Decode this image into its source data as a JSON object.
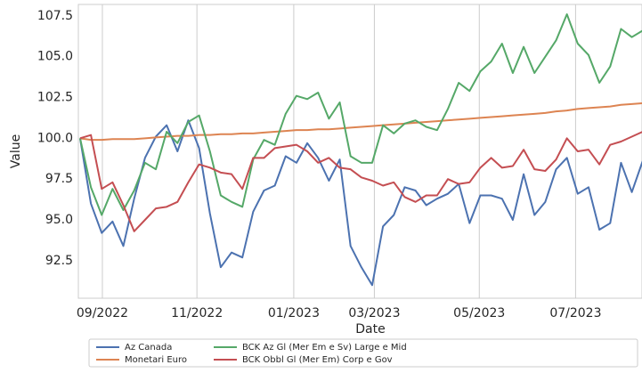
{
  "chart_data": {
    "type": "line",
    "x_label": "Date",
    "y_label": "Value",
    "x": [
      0,
      1,
      2,
      3,
      4,
      5,
      6,
      7,
      8,
      9,
      10,
      11,
      12,
      13,
      14,
      15,
      16,
      17,
      18,
      19,
      20,
      21,
      22,
      23,
      24,
      25,
      26,
      27,
      28,
      29,
      30,
      31,
      32,
      33,
      34,
      35,
      36,
      37,
      38,
      39,
      40,
      41,
      42,
      43,
      44,
      45,
      46,
      47,
      48,
      49,
      50,
      51,
      52
    ],
    "xlim": [
      -0.16,
      51.94
    ],
    "xticks": [
      {
        "value": 2.06,
        "label": "09/2022"
      },
      {
        "value": 10.8,
        "label": "11/2022"
      },
      {
        "value": 19.75,
        "label": "01/2023"
      },
      {
        "value": 27.2,
        "label": "03/2023"
      },
      {
        "value": 36.9,
        "label": "05/2023"
      },
      {
        "value": 45.8,
        "label": "07/2023"
      }
    ],
    "ylim": [
      90.2,
      108.2
    ],
    "yticks": [
      {
        "value": 92.5,
        "label": "92.5"
      },
      {
        "value": 95,
        "label": "95.0"
      },
      {
        "value": 97.5,
        "label": "97.5"
      },
      {
        "value": 100,
        "label": "100.0"
      },
      {
        "value": 102.5,
        "label": "102.5"
      },
      {
        "value": 105,
        "label": "105.0"
      },
      {
        "value": 107.5,
        "label": "107.5"
      }
    ],
    "grid": "x",
    "legend": "bottom",
    "series": [
      {
        "name": "Az Canada",
        "color": "#4c72b0",
        "values": [
          100,
          96,
          94.2,
          94.9,
          93.4,
          96.3,
          98.8,
          100.1,
          100.8,
          99.2,
          101.1,
          99.4,
          95.4,
          92.1,
          93,
          92.7,
          95.5,
          96.8,
          97.1,
          98.9,
          98.5,
          99.7,
          98.8,
          97.4,
          98.7,
          93.4,
          92.1,
          91,
          94.6,
          95.3,
          97,
          96.8,
          95.9,
          96.3,
          96.6,
          97.2,
          94.8,
          96.5,
          96.5,
          96.3,
          95,
          97.8,
          95.3,
          96.1,
          98.1,
          98.8,
          96.6,
          97,
          94.4,
          94.8,
          98.5,
          96.7,
          98.6
        ]
      },
      {
        "name": "Monetari Euro",
        "color": "#dd8452",
        "values": [
          100,
          99.9,
          99.9,
          99.95,
          99.95,
          99.95,
          100,
          100.05,
          100.1,
          100.15,
          100.15,
          100.2,
          100.2,
          100.25,
          100.25,
          100.3,
          100.3,
          100.35,
          100.4,
          100.45,
          100.5,
          100.5,
          100.55,
          100.55,
          100.6,
          100.65,
          100.7,
          100.75,
          100.8,
          100.85,
          100.9,
          100.95,
          101,
          101.05,
          101.1,
          101.15,
          101.2,
          101.25,
          101.3,
          101.35,
          101.4,
          101.45,
          101.5,
          101.55,
          101.65,
          101.7,
          101.8,
          101.85,
          101.9,
          101.95,
          102.05,
          102.1,
          102.15
        ]
      },
      {
        "name": "BCK Az Gl (Mer Em e Sv) Large e Mid",
        "color": "#55a868",
        "values": [
          100,
          97,
          95.3,
          96.9,
          95.6,
          96.8,
          98.5,
          98.1,
          100.4,
          99.7,
          101,
          101.4,
          99.2,
          96.5,
          96.1,
          95.8,
          98.7,
          99.9,
          99.6,
          101.5,
          102.6,
          102.4,
          102.8,
          101.2,
          102.2,
          98.9,
          98.5,
          98.5,
          100.8,
          100.3,
          100.9,
          101.1,
          100.7,
          100.5,
          101.8,
          103.4,
          102.9,
          104.1,
          104.7,
          105.8,
          104,
          105.6,
          104,
          105,
          106,
          107.6,
          105.8,
          105.1,
          103.4,
          104.4,
          106.7,
          106.2,
          106.6
        ]
      },
      {
        "name": "BCK Obbl Gl (Mer Em) Corp e Gov",
        "color": "#c44e52",
        "values": [
          100,
          100.2,
          96.9,
          97.3,
          95.9,
          94.3,
          95,
          95.7,
          95.8,
          96.1,
          97.3,
          98.4,
          98.2,
          97.9,
          97.8,
          96.9,
          98.8,
          98.8,
          99.4,
          99.5,
          99.6,
          99.2,
          98.5,
          98.8,
          98.2,
          98.1,
          97.6,
          97.4,
          97.1,
          97.3,
          96.4,
          96.1,
          96.5,
          96.5,
          97.5,
          97.2,
          97.3,
          98.2,
          98.8,
          98.2,
          98.3,
          99.3,
          98.1,
          98,
          98.7,
          100,
          99.2,
          99.3,
          98.4,
          99.6,
          99.8,
          100.1,
          100.4
        ]
      }
    ]
  }
}
